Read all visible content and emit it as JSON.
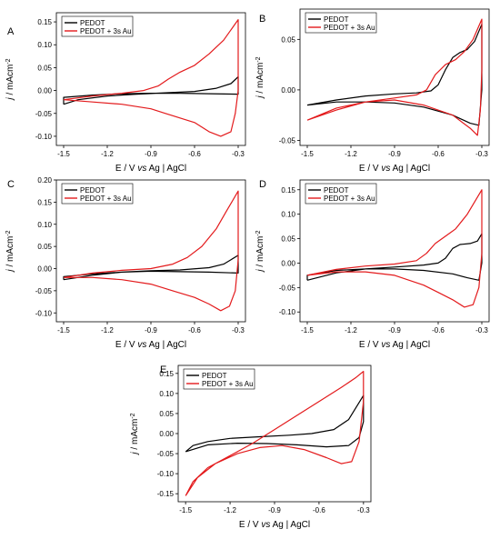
{
  "chart_data": [
    {
      "type": "line",
      "panel_label": "A",
      "xlabel": {
        "prefix": "E / V ",
        "italic": "vs",
        "suffix": " Ag | AgCl"
      },
      "ylabel": {
        "italic": "j",
        "text": " / mAcm",
        "sup": "-2"
      },
      "xlim": [
        -1.55,
        -0.25
      ],
      "ylim": [
        -0.12,
        0.17
      ],
      "xticks": [
        -1.5,
        -1.2,
        -0.9,
        -0.6,
        -0.3
      ],
      "xtick_labels": [
        "-1.5",
        "-1.2",
        "-0.9",
        "-0.6",
        "-0.3"
      ],
      "yticks": [
        -0.1,
        -0.05,
        0.0,
        0.05,
        0.1,
        0.15
      ],
      "ytick_labels": [
        "-0.10",
        "-0.05",
        "0.00",
        "0.05",
        "0.10",
        "0.15"
      ],
      "legend": "top-left",
      "series": [
        {
          "name": "PEDOT",
          "color": "#000000",
          "points": [
            [
              -1.5,
              -0.03
            ],
            [
              -1.4,
              -0.02
            ],
            [
              -1.2,
              -0.012
            ],
            [
              -1.0,
              -0.008
            ],
            [
              -0.8,
              -0.005
            ],
            [
              -0.6,
              -0.002
            ],
            [
              -0.45,
              0.005
            ],
            [
              -0.35,
              0.015
            ],
            [
              -0.3,
              0.03
            ],
            [
              -0.3,
              -0.008
            ],
            [
              -0.5,
              -0.007
            ],
            [
              -0.7,
              -0.006
            ],
            [
              -0.9,
              -0.006
            ],
            [
              -1.1,
              -0.007
            ],
            [
              -1.3,
              -0.01
            ],
            [
              -1.5,
              -0.015
            ],
            [
              -1.5,
              -0.03
            ]
          ]
        },
        {
          "name": "PEDOT + 3s Au",
          "color": "#e31a1c",
          "points": [
            [
              -1.5,
              -0.02
            ],
            [
              -1.3,
              -0.012
            ],
            [
              -1.1,
              -0.006
            ],
            [
              -0.95,
              0.0
            ],
            [
              -0.85,
              0.01
            ],
            [
              -0.78,
              0.025
            ],
            [
              -0.7,
              0.04
            ],
            [
              -0.6,
              0.055
            ],
            [
              -0.5,
              0.08
            ],
            [
              -0.4,
              0.11
            ],
            [
              -0.3,
              0.155
            ],
            [
              -0.3,
              0.0
            ],
            [
              -0.32,
              -0.05
            ],
            [
              -0.35,
              -0.09
            ],
            [
              -0.42,
              -0.1
            ],
            [
              -0.5,
              -0.09
            ],
            [
              -0.6,
              -0.07
            ],
            [
              -0.7,
              -0.06
            ],
            [
              -0.8,
              -0.05
            ],
            [
              -0.9,
              -0.04
            ],
            [
              -1.1,
              -0.03
            ],
            [
              -1.3,
              -0.025
            ],
            [
              -1.5,
              -0.02
            ]
          ]
        }
      ]
    },
    {
      "type": "line",
      "panel_label": "B",
      "xlabel": {
        "prefix": "E / V ",
        "italic": "vs",
        "suffix": " Ag | AgCl"
      },
      "ylabel": {
        "italic": "j",
        "text": " / mAcm",
        "sup": "-2"
      },
      "xlim": [
        -1.55,
        -0.25
      ],
      "ylim": [
        -0.055,
        0.08
      ],
      "xticks": [
        -1.5,
        -1.2,
        -0.9,
        -0.6,
        -0.3
      ],
      "xtick_labels": [
        "-1.5",
        "-1.2",
        "-0.9",
        "-0.6",
        "-0.3"
      ],
      "yticks": [
        -0.05,
        0.0,
        0.05
      ],
      "ytick_labels": [
        "-0.05",
        "0.00",
        "0.05"
      ],
      "legend": "top-left",
      "series": [
        {
          "name": "PEDOT",
          "color": "#000000",
          "points": [
            [
              -1.5,
              -0.015
            ],
            [
              -1.3,
              -0.01
            ],
            [
              -1.1,
              -0.006
            ],
            [
              -0.9,
              -0.004
            ],
            [
              -0.75,
              -0.003
            ],
            [
              -0.65,
              -0.001
            ],
            [
              -0.6,
              0.005
            ],
            [
              -0.55,
              0.02
            ],
            [
              -0.5,
              0.032
            ],
            [
              -0.45,
              0.037
            ],
            [
              -0.4,
              0.04
            ],
            [
              -0.35,
              0.048
            ],
            [
              -0.3,
              0.065
            ],
            [
              -0.3,
              0.0
            ],
            [
              -0.32,
              -0.035
            ],
            [
              -0.38,
              -0.033
            ],
            [
              -0.5,
              -0.025
            ],
            [
              -0.7,
              -0.017
            ],
            [
              -0.9,
              -0.013
            ],
            [
              -1.1,
              -0.012
            ],
            [
              -1.3,
              -0.012
            ],
            [
              -1.5,
              -0.015
            ]
          ]
        },
        {
          "name": "PEDOT + 3s Au",
          "color": "#e31a1c",
          "points": [
            [
              -1.5,
              -0.03
            ],
            [
              -1.3,
              -0.02
            ],
            [
              -1.1,
              -0.012
            ],
            [
              -0.9,
              -0.008
            ],
            [
              -0.75,
              -0.005
            ],
            [
              -0.68,
              0.0
            ],
            [
              -0.62,
              0.015
            ],
            [
              -0.55,
              0.025
            ],
            [
              -0.48,
              0.03
            ],
            [
              -0.42,
              0.038
            ],
            [
              -0.36,
              0.05
            ],
            [
              -0.3,
              0.07
            ],
            [
              -0.3,
              0.02
            ],
            [
              -0.31,
              -0.02
            ],
            [
              -0.33,
              -0.045
            ],
            [
              -0.38,
              -0.038
            ],
            [
              -0.5,
              -0.025
            ],
            [
              -0.7,
              -0.015
            ],
            [
              -0.9,
              -0.01
            ],
            [
              -1.1,
              -0.012
            ],
            [
              -1.3,
              -0.018
            ],
            [
              -1.5,
              -0.03
            ]
          ]
        }
      ]
    },
    {
      "type": "line",
      "panel_label": "C",
      "xlabel": {
        "prefix": "E / V ",
        "italic": "vs",
        "suffix": " Ag | AgCl"
      },
      "ylabel": {
        "italic": "j",
        "text": " / mAcm",
        "sup": "-2"
      },
      "xlim": [
        -1.55,
        -0.25
      ],
      "ylim": [
        -0.12,
        0.2
      ],
      "xticks": [
        -1.5,
        -1.2,
        -0.9,
        -0.6,
        -0.3
      ],
      "xtick_labels": [
        "-1.5",
        "-1.2",
        "-0.9",
        "-0.6",
        "-0.3"
      ],
      "yticks": [
        -0.1,
        -0.05,
        0.0,
        0.05,
        0.1,
        0.15,
        0.2
      ],
      "ytick_labels": [
        "-0.10",
        "-0.05",
        "0.00",
        "0.05",
        "0.10",
        "0.15",
        "0.20"
      ],
      "legend": "top-left",
      "series": [
        {
          "name": "PEDOT",
          "color": "#000000",
          "points": [
            [
              -1.5,
              -0.025
            ],
            [
              -1.3,
              -0.015
            ],
            [
              -1.1,
              -0.008
            ],
            [
              -0.9,
              -0.005
            ],
            [
              -0.7,
              -0.003
            ],
            [
              -0.5,
              0.002
            ],
            [
              -0.4,
              0.01
            ],
            [
              -0.3,
              0.03
            ],
            [
              -0.3,
              -0.01
            ],
            [
              -0.5,
              -0.008
            ],
            [
              -0.7,
              -0.007
            ],
            [
              -0.9,
              -0.006
            ],
            [
              -1.1,
              -0.008
            ],
            [
              -1.3,
              -0.012
            ],
            [
              -1.5,
              -0.018
            ],
            [
              -1.5,
              -0.025
            ]
          ]
        },
        {
          "name": "PEDOT + 3s Au",
          "color": "#e31a1c",
          "points": [
            [
              -1.5,
              -0.02
            ],
            [
              -1.3,
              -0.01
            ],
            [
              -1.1,
              -0.004
            ],
            [
              -0.9,
              0.0
            ],
            [
              -0.75,
              0.01
            ],
            [
              -0.65,
              0.025
            ],
            [
              -0.55,
              0.05
            ],
            [
              -0.45,
              0.09
            ],
            [
              -0.38,
              0.13
            ],
            [
              -0.3,
              0.175
            ],
            [
              -0.3,
              0.02
            ],
            [
              -0.32,
              -0.05
            ],
            [
              -0.36,
              -0.085
            ],
            [
              -0.42,
              -0.095
            ],
            [
              -0.5,
              -0.08
            ],
            [
              -0.6,
              -0.065
            ],
            [
              -0.75,
              -0.05
            ],
            [
              -0.9,
              -0.035
            ],
            [
              -1.1,
              -0.025
            ],
            [
              -1.3,
              -0.02
            ],
            [
              -1.5,
              -0.02
            ]
          ]
        }
      ]
    },
    {
      "type": "line",
      "panel_label": "D",
      "xlabel": {
        "prefix": "E / V ",
        "italic": "vs",
        "suffix": " Ag | AgCl"
      },
      "ylabel": {
        "italic": "j",
        "text": " / mAcm",
        "sup": "-2"
      },
      "xlim": [
        -1.55,
        -0.25
      ],
      "ylim": [
        -0.12,
        0.17
      ],
      "xticks": [
        -1.5,
        -1.2,
        -0.9,
        -0.6,
        -0.3
      ],
      "xtick_labels": [
        "-1.5",
        "-1.2",
        "-0.9",
        "-0.6",
        "-0.3"
      ],
      "yticks": [
        -0.1,
        -0.05,
        0.0,
        0.05,
        0.1,
        0.15
      ],
      "ytick_labels": [
        "-0.10",
        "-0.05",
        "0.00",
        "0.05",
        "0.10",
        "0.15"
      ],
      "legend": "top-left",
      "series": [
        {
          "name": "PEDOT",
          "color": "#000000",
          "points": [
            [
              -1.5,
              -0.035
            ],
            [
              -1.3,
              -0.02
            ],
            [
              -1.1,
              -0.012
            ],
            [
              -0.9,
              -0.008
            ],
            [
              -0.7,
              -0.004
            ],
            [
              -0.6,
              0.0
            ],
            [
              -0.55,
              0.01
            ],
            [
              -0.5,
              0.03
            ],
            [
              -0.45,
              0.038
            ],
            [
              -0.38,
              0.04
            ],
            [
              -0.33,
              0.045
            ],
            [
              -0.3,
              0.06
            ],
            [
              -0.3,
              0.0
            ],
            [
              -0.32,
              -0.035
            ],
            [
              -0.4,
              -0.03
            ],
            [
              -0.5,
              -0.022
            ],
            [
              -0.7,
              -0.015
            ],
            [
              -0.9,
              -0.012
            ],
            [
              -1.1,
              -0.012
            ],
            [
              -1.3,
              -0.015
            ],
            [
              -1.5,
              -0.025
            ],
            [
              -1.5,
              -0.035
            ]
          ]
        },
        {
          "name": "PEDOT + 3s Au",
          "color": "#e31a1c",
          "points": [
            [
              -1.5,
              -0.025
            ],
            [
              -1.3,
              -0.013
            ],
            [
              -1.1,
              -0.006
            ],
            [
              -0.9,
              -0.002
            ],
            [
              -0.75,
              0.005
            ],
            [
              -0.68,
              0.02
            ],
            [
              -0.62,
              0.04
            ],
            [
              -0.55,
              0.055
            ],
            [
              -0.48,
              0.07
            ],
            [
              -0.4,
              0.1
            ],
            [
              -0.3,
              0.15
            ],
            [
              -0.3,
              0.02
            ],
            [
              -0.32,
              -0.05
            ],
            [
              -0.36,
              -0.085
            ],
            [
              -0.42,
              -0.09
            ],
            [
              -0.5,
              -0.075
            ],
            [
              -0.6,
              -0.06
            ],
            [
              -0.7,
              -0.045
            ],
            [
              -0.8,
              -0.035
            ],
            [
              -0.9,
              -0.025
            ],
            [
              -1.1,
              -0.018
            ],
            [
              -1.3,
              -0.018
            ],
            [
              -1.5,
              -0.025
            ]
          ]
        }
      ]
    },
    {
      "type": "line",
      "panel_label": "E",
      "xlabel": {
        "prefix": "E / V ",
        "italic": "vs",
        "suffix": " Ag | AgCl"
      },
      "ylabel": {
        "italic": "j",
        "text": " / mAcm",
        "sup": "-2"
      },
      "xlim": [
        -1.55,
        -0.25
      ],
      "ylim": [
        -0.17,
        0.17
      ],
      "xticks": [
        -1.5,
        -1.2,
        -0.9,
        -0.6,
        -0.3
      ],
      "xtick_labels": [
        "-1.5",
        "-1.2",
        "-0.9",
        "-0.6",
        "-0.3"
      ],
      "yticks": [
        -0.15,
        -0.1,
        -0.05,
        0.0,
        0.05,
        0.1,
        0.15
      ],
      "ytick_labels": [
        "-0.15",
        "-0.10",
        "-0.05",
        "0.00",
        "0.05",
        "0.10",
        "0.15"
      ],
      "legend": "top-left",
      "series": [
        {
          "name": "PEDOT",
          "color": "#000000",
          "points": [
            [
              -1.5,
              -0.045
            ],
            [
              -1.45,
              -0.03
            ],
            [
              -1.35,
              -0.02
            ],
            [
              -1.2,
              -0.012
            ],
            [
              -1.0,
              -0.008
            ],
            [
              -0.8,
              -0.004
            ],
            [
              -0.65,
              0.0
            ],
            [
              -0.5,
              0.01
            ],
            [
              -0.4,
              0.035
            ],
            [
              -0.3,
              0.095
            ],
            [
              -0.3,
              0.03
            ],
            [
              -0.33,
              -0.01
            ],
            [
              -0.4,
              -0.03
            ],
            [
              -0.55,
              -0.033
            ],
            [
              -0.75,
              -0.028
            ],
            [
              -0.95,
              -0.025
            ],
            [
              -1.15,
              -0.024
            ],
            [
              -1.35,
              -0.028
            ],
            [
              -1.5,
              -0.045
            ]
          ]
        },
        {
          "name": "PEDOT + 3s Au",
          "color": "#e31a1c",
          "points": [
            [
              -1.5,
              -0.155
            ],
            [
              -1.45,
              -0.12
            ],
            [
              -1.35,
              -0.085
            ],
            [
              -1.2,
              -0.055
            ],
            [
              -1.05,
              -0.025
            ],
            [
              -0.9,
              0.01
            ],
            [
              -0.75,
              0.045
            ],
            [
              -0.6,
              0.08
            ],
            [
              -0.45,
              0.115
            ],
            [
              -0.35,
              0.14
            ],
            [
              -0.3,
              0.155
            ],
            [
              -0.3,
              0.08
            ],
            [
              -0.33,
              -0.02
            ],
            [
              -0.38,
              -0.07
            ],
            [
              -0.45,
              -0.075
            ],
            [
              -0.55,
              -0.06
            ],
            [
              -0.7,
              -0.04
            ],
            [
              -0.85,
              -0.03
            ],
            [
              -1.0,
              -0.035
            ],
            [
              -1.15,
              -0.05
            ],
            [
              -1.3,
              -0.075
            ],
            [
              -1.42,
              -0.11
            ],
            [
              -1.5,
              -0.155
            ]
          ]
        }
      ]
    }
  ]
}
